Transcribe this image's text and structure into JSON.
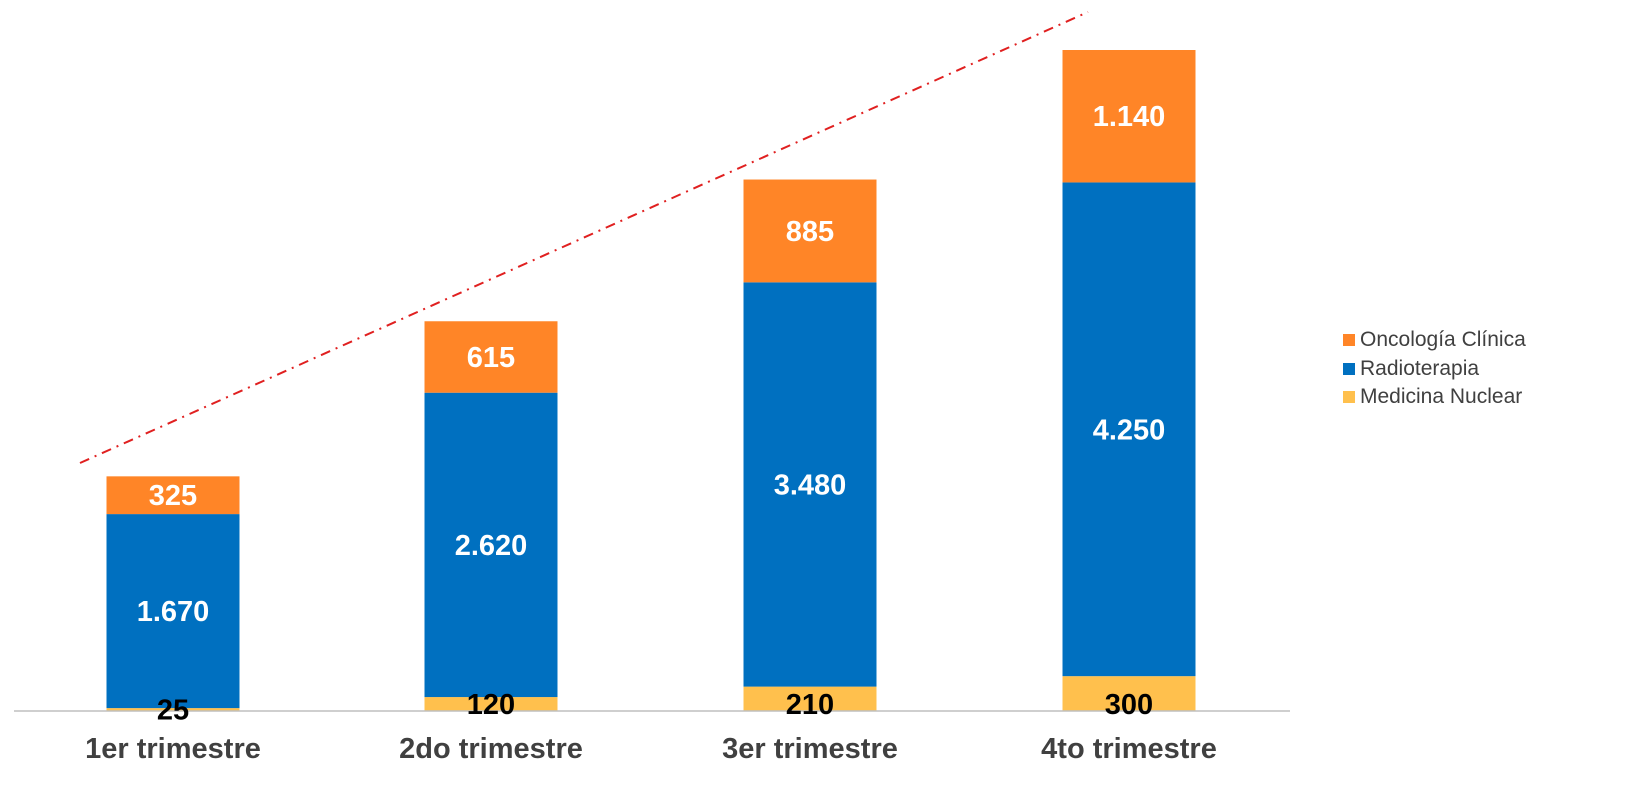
{
  "chart_data": {
    "type": "bar",
    "stacked": true,
    "categories": [
      "1er trimestre",
      "2do trimestre",
      "3er trimestre",
      "4to trimestre"
    ],
    "series": [
      {
        "name": "Medicina Nuclear",
        "values": [
          25,
          120,
          210,
          300
        ],
        "color": "#FFC04D",
        "label_color": "#000000"
      },
      {
        "name": "Radioterapia",
        "values": [
          1670,
          2620,
          3480,
          4250
        ],
        "color": "#0070C0",
        "label_color": "#FFFFFF"
      },
      {
        "name": "Oncología Clínica",
        "values": [
          325,
          615,
          885,
          1140
        ],
        "color": "#FF8527",
        "label_color": "#FFFFFF"
      }
    ],
    "data_labels": [
      [
        "25",
        "120",
        "210",
        "300"
      ],
      [
        "1.670",
        "2.620",
        "3.480",
        "4.250"
      ],
      [
        "325",
        "615",
        "885",
        "1.140"
      ]
    ],
    "legend_position": "right",
    "legend_order": [
      "Oncología Clínica",
      "Radioterapia",
      "Medicina Nuclear"
    ],
    "trend_line": {
      "style": "dash-dot",
      "color": "#E02020"
    },
    "grid": false,
    "ylim": [
      0,
      5690
    ]
  }
}
